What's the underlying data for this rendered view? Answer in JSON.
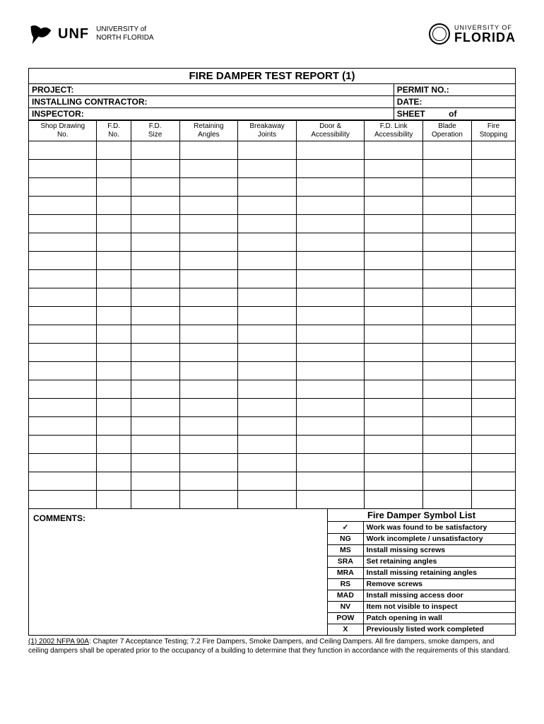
{
  "logos": {
    "unf_abbrev": "UNF",
    "unf_line1": "UNIVERSITY of",
    "unf_line2": "NORTH FLORIDA",
    "uf_line1": "UNIVERSITY OF",
    "uf_line2": "FLORIDA"
  },
  "title": "FIRE DAMPER TEST REPORT (1)",
  "info": {
    "project_label": "PROJECT:",
    "permit_label": "PERMIT NO.:",
    "contractor_label": "INSTALLING CONTRACTOR:",
    "date_label": "DATE:",
    "inspector_label": "INSPECTOR:",
    "sheet_label": "SHEET",
    "sheet_of": "of"
  },
  "columns": [
    "Shop Drawing No.",
    "F.D. No.",
    "F.D. Size",
    "Retaining Angles",
    "Breakaway Joints",
    "Door & Accessibility",
    "F.D. Link Accessibility",
    "Blade Operation",
    "Fire Stopping"
  ],
  "column_widths_pct": [
    14,
    7,
    10,
    12,
    12,
    14,
    12,
    10,
    9
  ],
  "data_row_count": 20,
  "comments_label": "COMMENTS:",
  "symbol_list": {
    "title": "Fire Damper Symbol List",
    "rows": [
      {
        "sym": "✓",
        "desc": "Work was found to be satisfactory"
      },
      {
        "sym": "NG",
        "desc": "Work incomplete / unsatisfactory"
      },
      {
        "sym": "MS",
        "desc": "Install missing screws"
      },
      {
        "sym": "SRA",
        "desc": "Set retaining angles"
      },
      {
        "sym": "MRA",
        "desc": "Install missing retaining angles"
      },
      {
        "sym": "RS",
        "desc": "Remove screws"
      },
      {
        "sym": "MAD",
        "desc": "Install missing access door"
      },
      {
        "sym": "NV",
        "desc": "Item not visible to inspect"
      },
      {
        "sym": "POW",
        "desc": "Patch opening in wall"
      },
      {
        "sym": "X",
        "desc": "Previously listed work completed"
      }
    ]
  },
  "footnote": {
    "ref": "(1) 2002 NFPA 90A",
    "text": ": Chapter 7 Acceptance Testing; 7.2 Fire Dampers, Smoke Dampers, and Ceiling Dampers. All fire dampers, smoke dampers, and ceiling dampers shall be operated prior to the occupancy of a building to determine that they function in accordance with the requirements of this standard."
  },
  "colors": {
    "text": "#000000",
    "background": "#ffffff",
    "border": "#000000"
  },
  "typography": {
    "title_fontsize": 15,
    "info_fontsize": 12,
    "column_header_fontsize": 10,
    "symbol_fontsize": 10.5,
    "footnote_fontsize": 10
  }
}
